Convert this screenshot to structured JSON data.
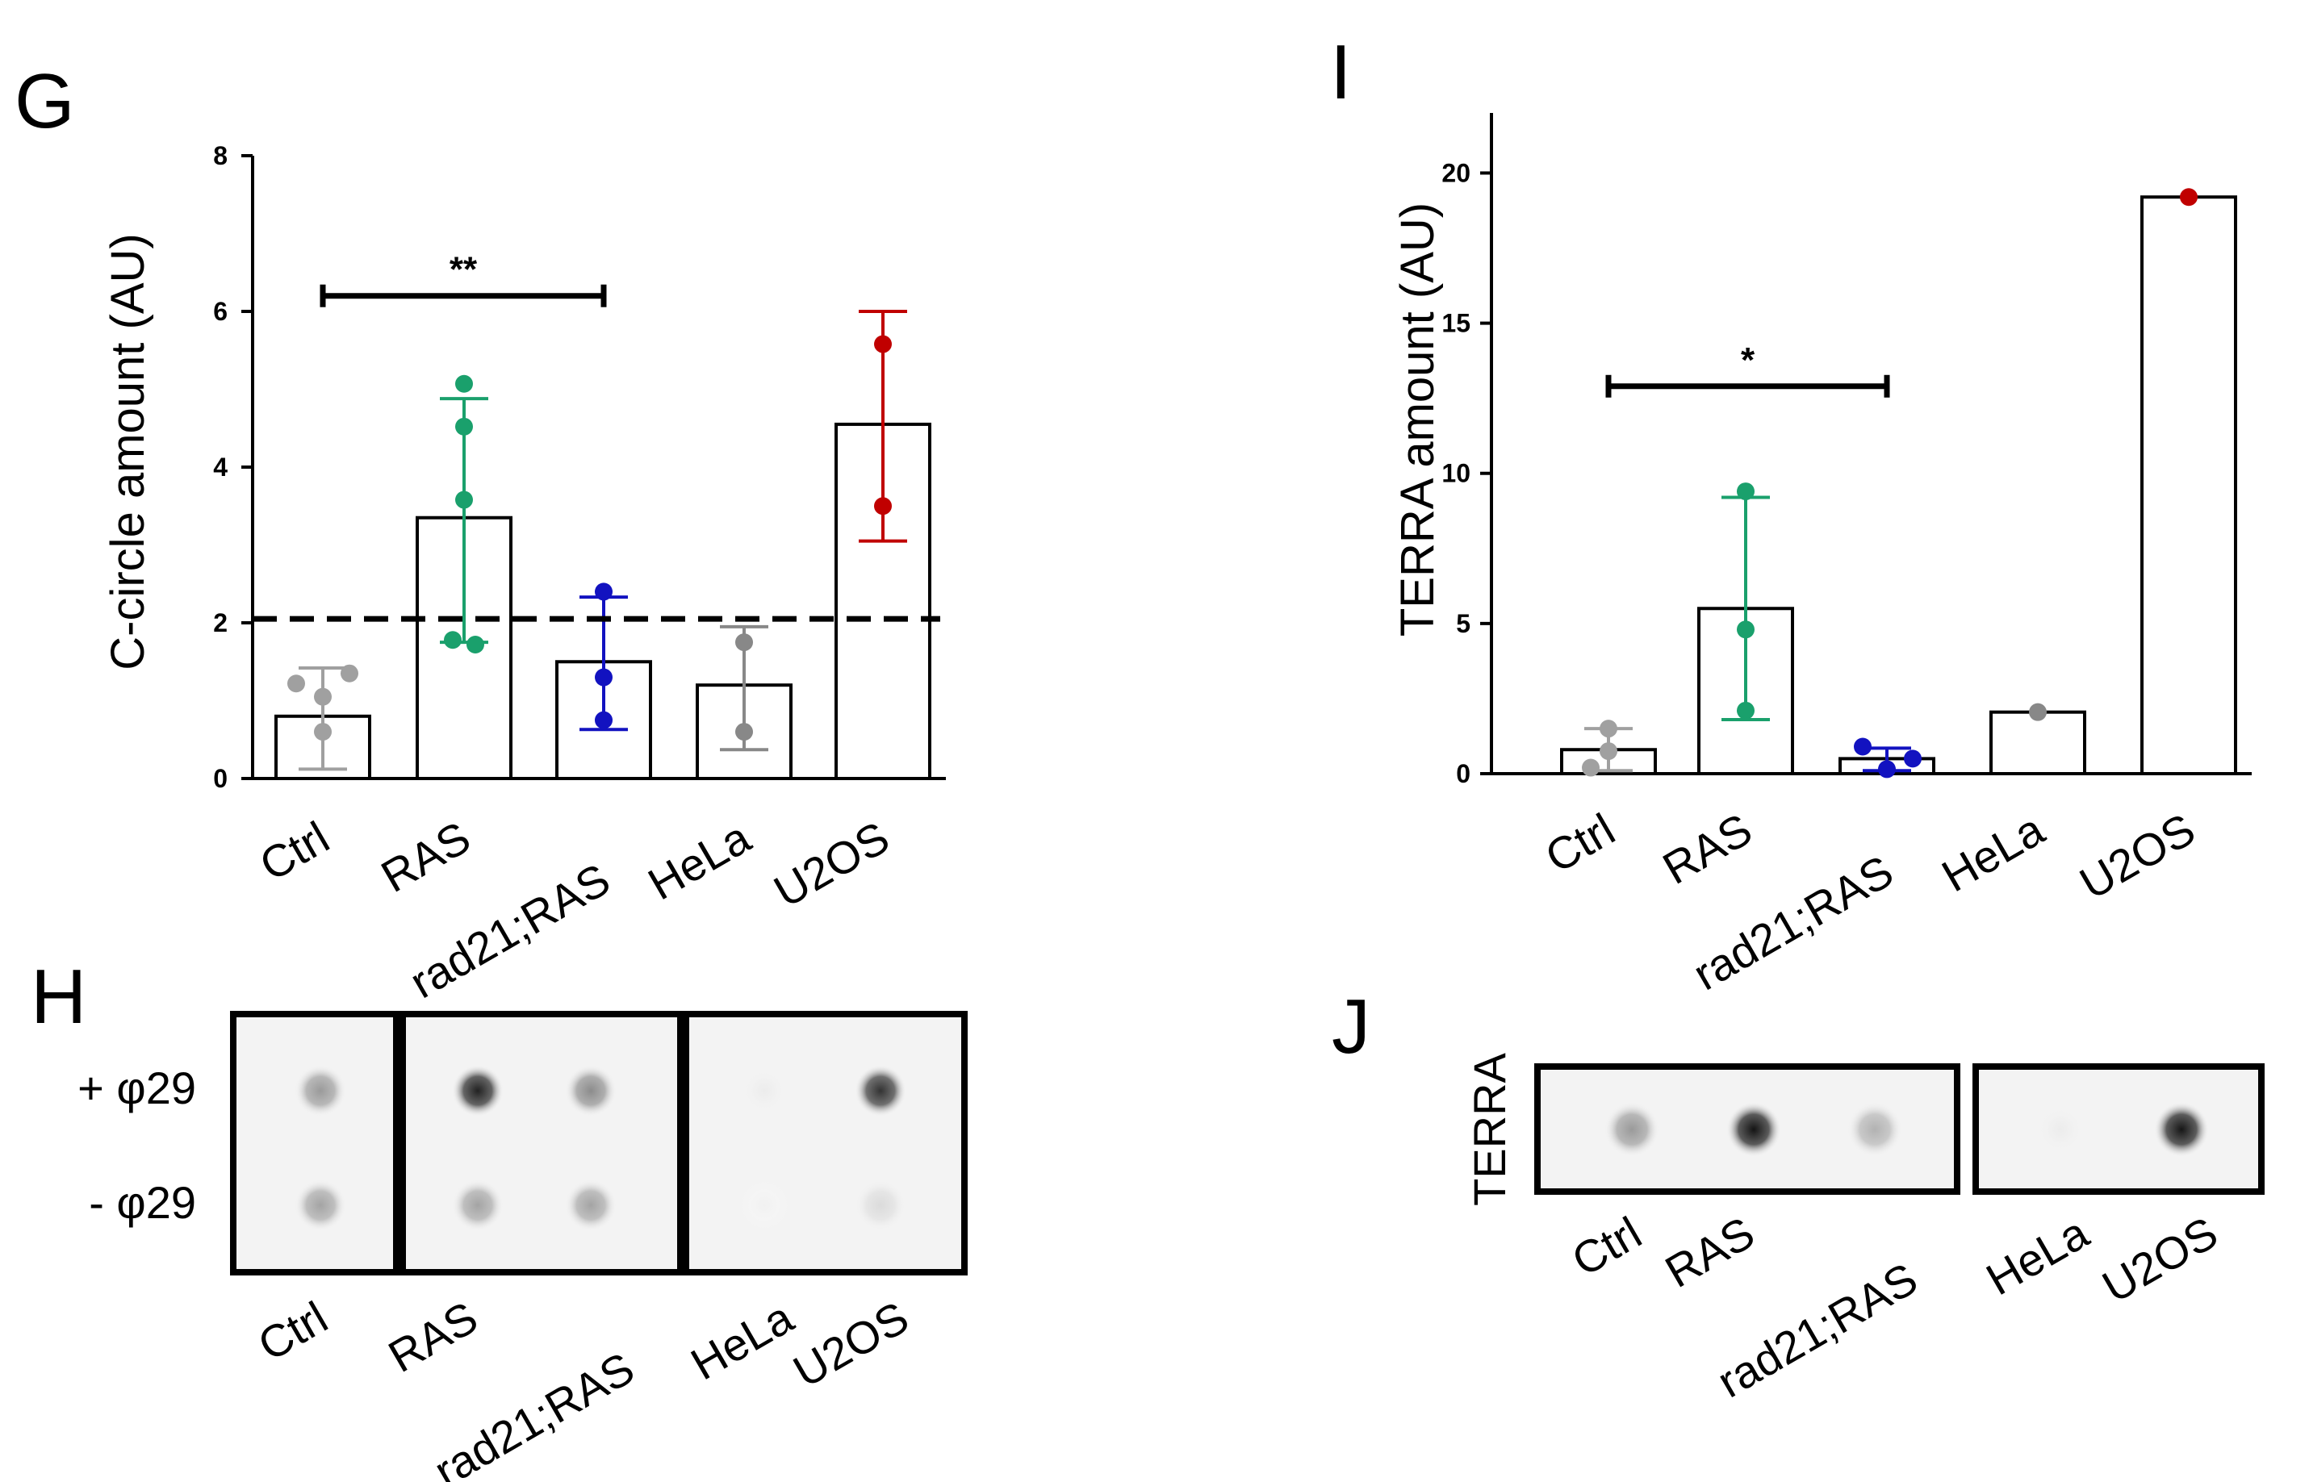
{
  "colors": {
    "ctrl": "#a0a0a0",
    "ras": "#1aa06c",
    "rad21": "#1212c0",
    "hela": "#888888",
    "u2os": "#c00000"
  },
  "panels": {
    "G": "G",
    "H": "H",
    "I": "I",
    "J": "J"
  },
  "chart_data": [
    {
      "panel": "G",
      "type": "bar",
      "title": "",
      "ylabel": "C-circle amount (AU)",
      "xlabel": "",
      "ylim": [
        0,
        8
      ],
      "yticks": [
        0,
        2,
        4,
        6,
        8
      ],
      "threshold": 2.05,
      "categories": [
        "Ctrl",
        "RAS",
        "rad21;RAS",
        "HeLa",
        "U2OS"
      ],
      "bars": [
        {
          "category": "Ctrl",
          "mean": 0.8,
          "err_low": 0.12,
          "err_high": 1.42,
          "points": [
            1.35,
            1.22,
            1.05,
            0.6
          ],
          "color_key": "ctrl"
        },
        {
          "category": "RAS",
          "mean": 3.35,
          "err_low": 1.75,
          "err_high": 4.88,
          "points": [
            5.07,
            4.52,
            3.58,
            1.78,
            1.72
          ],
          "color_key": "ras"
        },
        {
          "category": "rad21;RAS",
          "mean": 1.5,
          "err_low": 0.63,
          "err_high": 2.33,
          "points": [
            2.4,
            1.3,
            0.75
          ],
          "color_key": "rad21"
        },
        {
          "category": "HeLa",
          "mean": 1.2,
          "err_low": 0.37,
          "err_high": 1.95,
          "points": [
            1.75,
            0.6
          ],
          "color_key": "hela"
        },
        {
          "category": "U2OS",
          "mean": 4.55,
          "err_low": 3.05,
          "err_high": 6.0,
          "points": [
            5.58,
            3.5
          ],
          "color_key": "u2os"
        }
      ],
      "significance": {
        "from": "Ctrl",
        "to": "rad21;RAS",
        "y": 6.2,
        "label": "**"
      }
    },
    {
      "panel": "I",
      "type": "bar",
      "title": "",
      "ylabel": "TERRA amount (AU)",
      "xlabel": "",
      "ylim": [
        0,
        22
      ],
      "yticks": [
        0,
        5,
        10,
        15,
        20
      ],
      "categories": [
        "Ctrl",
        "RAS",
        "rad21;RAS",
        "HeLa",
        "U2OS"
      ],
      "bars": [
        {
          "category": "Ctrl",
          "mean": 0.8,
          "err_low": 0.1,
          "err_high": 1.5,
          "points": [
            1.5,
            0.75,
            0.2
          ],
          "color_key": "ctrl"
        },
        {
          "category": "RAS",
          "mean": 5.5,
          "err_low": 1.8,
          "err_high": 9.2,
          "points": [
            9.4,
            4.8,
            2.1
          ],
          "color_key": "ras"
        },
        {
          "category": "rad21;RAS",
          "mean": 0.5,
          "err_low": 0.1,
          "err_high": 0.85,
          "points": [
            0.9,
            0.5,
            0.15
          ],
          "color_key": "rad21"
        },
        {
          "category": "HeLa",
          "mean": 2.05,
          "err_low": 2.05,
          "err_high": 2.05,
          "points": [
            2.05
          ],
          "color_key": "hela"
        },
        {
          "category": "U2OS",
          "mean": 19.2,
          "err_low": 19.2,
          "err_high": 19.2,
          "points": [
            19.2
          ],
          "color_key": "u2os"
        }
      ],
      "significance": {
        "from": "Ctrl",
        "to": "rad21;RAS",
        "y": 12.9,
        "label": "*"
      }
    }
  ],
  "blot_h": {
    "row_labels": [
      "+ φ29",
      "- φ29"
    ],
    "lane_labels": [
      "Ctrl",
      "RAS",
      "rad21;RAS",
      "HeLa",
      "U2OS"
    ],
    "intensity_plus": [
      0.42,
      0.92,
      0.48,
      0.08,
      0.85
    ],
    "intensity_minus": [
      0.38,
      0.38,
      0.38,
      0.06,
      0.15
    ]
  },
  "blot_j": {
    "row_label": "TERRA",
    "lane_labels": [
      "Ctrl",
      "RAS",
      "rad21;RAS",
      "HeLa",
      "U2OS"
    ],
    "intensity": [
      0.42,
      0.98,
      0.32,
      0.08,
      0.97
    ]
  }
}
